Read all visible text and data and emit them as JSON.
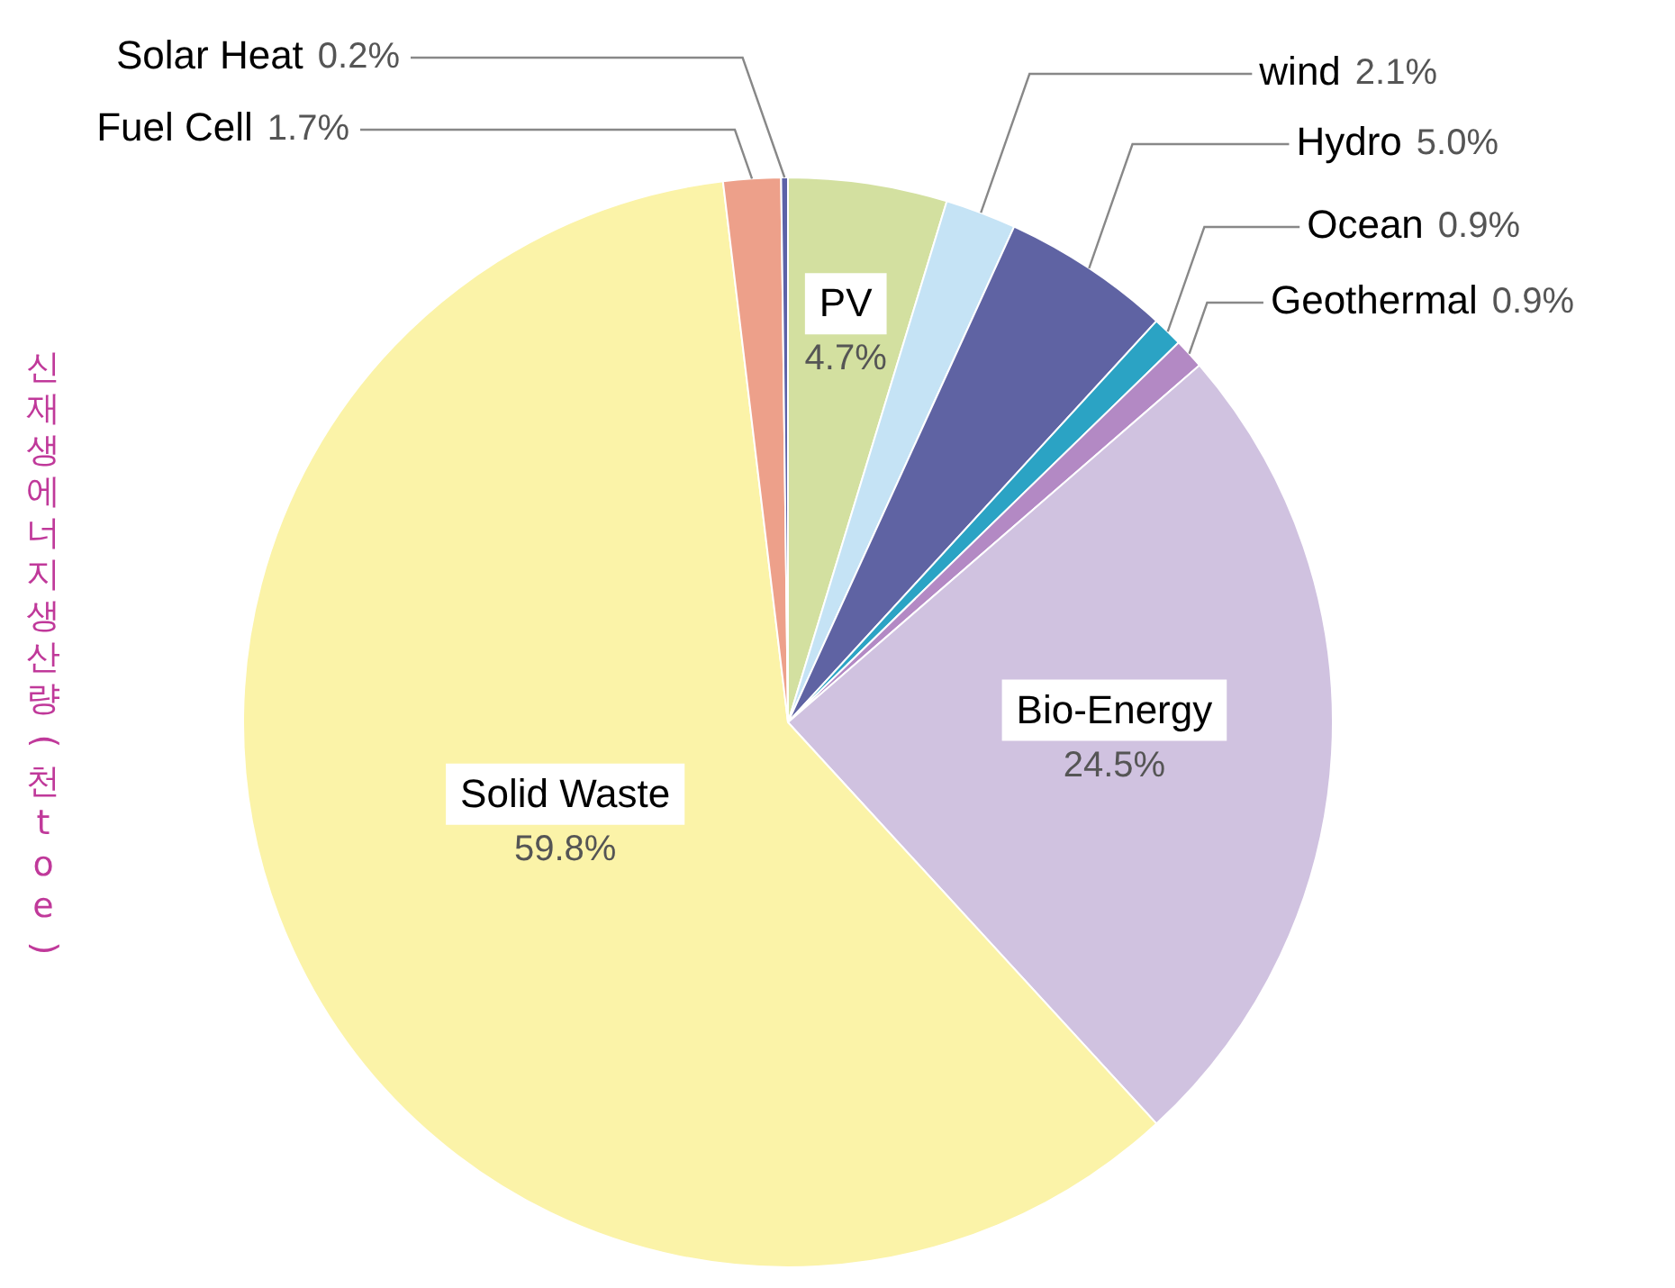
{
  "chart_data": {
    "type": "pie",
    "ylabel": "신재생에너지생산량(천toe)",
    "categories": [
      "PV",
      "wind",
      "Hydro",
      "Ocean",
      "Geothermal",
      "Bio-Energy",
      "Solid Waste",
      "Fuel Cell",
      "Solar Heat"
    ],
    "values": [
      4.7,
      2.1,
      5.0,
      0.9,
      0.9,
      24.5,
      59.8,
      1.7,
      0.2
    ],
    "value_labels": [
      "4.7%",
      "2.1%",
      "5.0%",
      "0.9%",
      "0.9%",
      "24.5%",
      "59.8%",
      "1.7%",
      "0.2%"
    ],
    "colors": [
      "#d3e0a0",
      "#c5e3f5",
      "#5f63a3",
      "#2ba3c4",
      "#b389c4",
      "#d0c2e0",
      "#fbf3a8",
      "#eda08a",
      "#5c62a8"
    ],
    "legend": false
  }
}
